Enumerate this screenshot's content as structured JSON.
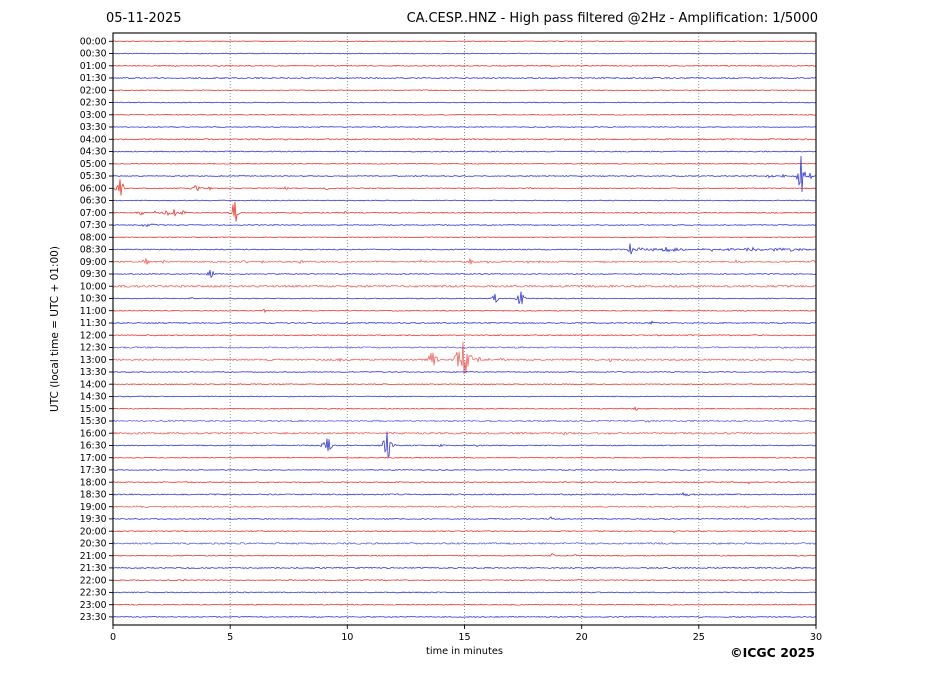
{
  "copyright": "©ICGC 2025",
  "chart_data": {
    "type": "line",
    "subtype": "helicorder-daily-drum-plot",
    "date": "05-11-2025",
    "title": "CA.CESP..HNZ - High pass filtered @2Hz - Amplification: 1/5000",
    "xlabel": "time in minutes",
    "ylabel": "UTC (local time = UTC + 01:00)",
    "x_range": [
      0,
      30
    ],
    "x_ticks": [
      0,
      5,
      10,
      15,
      20,
      25,
      30
    ],
    "grid_minutes": [
      5,
      10,
      15,
      20,
      25
    ],
    "grid_on": true,
    "trace_colors": {
      "red": "#e8241a",
      "blue": "#2024d2"
    },
    "rows_note": "48 half-hour traces; events = [minute, amplitude_px, width_min]",
    "rows": [
      {
        "time": "00:00",
        "color": "red",
        "noise": 0.4,
        "events": []
      },
      {
        "time": "00:30",
        "color": "blue",
        "noise": 0.4,
        "events": []
      },
      {
        "time": "01:00",
        "color": "red",
        "noise": 0.5,
        "events": []
      },
      {
        "time": "01:30",
        "color": "blue",
        "noise": 0.6,
        "events": []
      },
      {
        "time": "02:00",
        "color": "red",
        "noise": 0.4,
        "events": []
      },
      {
        "time": "02:30",
        "color": "blue",
        "noise": 0.4,
        "events": []
      },
      {
        "time": "03:00",
        "color": "red",
        "noise": 0.4,
        "events": []
      },
      {
        "time": "03:30",
        "color": "blue",
        "noise": 0.4,
        "events": []
      },
      {
        "time": "04:00",
        "color": "red",
        "noise": 0.6,
        "events": []
      },
      {
        "time": "04:30",
        "color": "blue",
        "noise": 0.5,
        "events": []
      },
      {
        "time": "05:00",
        "color": "red",
        "noise": 0.4,
        "events": []
      },
      {
        "time": "05:30",
        "color": "blue",
        "noise": 0.45,
        "events": [
          [
            28.0,
            1.5,
            0.2
          ],
          [
            28.6,
            1.2,
            0.15
          ],
          [
            29.35,
            20,
            0.15
          ],
          [
            29.75,
            3,
            0.12
          ]
        ]
      },
      {
        "time": "06:00",
        "color": "red",
        "noise": 0.45,
        "events": [
          [
            0.3,
            9,
            0.15
          ],
          [
            3.5,
            2.8,
            0.25
          ],
          [
            4.1,
            1.8,
            0.12
          ],
          [
            7.4,
            1.2,
            0.1
          ],
          [
            9.1,
            1.2,
            0.1
          ],
          [
            17.8,
            1.2,
            0.1
          ]
        ]
      },
      {
        "time": "06:30",
        "color": "blue",
        "noise": 0.4,
        "events": []
      },
      {
        "time": "07:00",
        "color": "red",
        "noise": 0.5,
        "events": [
          [
            1.2,
            1.8,
            0.15
          ],
          [
            1.75,
            1.8,
            0.12
          ],
          [
            2.3,
            2.5,
            0.2
          ],
          [
            2.6,
            3.5,
            0.18
          ],
          [
            3.0,
            2.2,
            0.15
          ],
          [
            5.2,
            11,
            0.15
          ],
          [
            9.9,
            1.8,
            0.1
          ]
        ]
      },
      {
        "time": "07:30",
        "color": "blue",
        "noise": 0.45,
        "events": [
          [
            1.5,
            1.3,
            0.45
          ]
        ]
      },
      {
        "time": "08:00",
        "color": "red",
        "noise": 0.4,
        "events": []
      },
      {
        "time": "08:30",
        "color": "blue",
        "noise": 0.5,
        "events": [
          [
            22.05,
            6,
            0.12
          ],
          [
            22.5,
            2,
            0.25
          ],
          [
            23.1,
            1.8,
            0.2
          ],
          [
            23.6,
            2.8,
            0.2
          ],
          [
            23.95,
            2.8,
            0.12
          ],
          [
            24.4,
            1.8,
            0.3
          ],
          [
            25.1,
            1.5,
            0.2
          ],
          [
            25.6,
            1.8,
            0.1
          ],
          [
            26.3,
            1.5,
            0.25
          ],
          [
            27.2,
            1.8,
            0.4
          ],
          [
            28.2,
            1.8,
            0.5
          ],
          [
            28.9,
            2.5,
            0.12
          ],
          [
            29.4,
            1.2,
            0.2
          ]
        ]
      },
      {
        "time": "09:00",
        "color": "red",
        "noise": 0.7,
        "events": [
          [
            1.4,
            3.5,
            0.12
          ],
          [
            2.2,
            1.2,
            0.1
          ],
          [
            5.6,
            1.5,
            0.12
          ],
          [
            6.4,
            1.5,
            0.1
          ],
          [
            8.0,
            1.5,
            0.1
          ],
          [
            9.3,
            1.2,
            0.1
          ],
          [
            11.2,
            1.5,
            0.1
          ],
          [
            13.2,
            1.5,
            0.1
          ],
          [
            15.25,
            3.2,
            0.12
          ],
          [
            16.0,
            1.3,
            0.1
          ],
          [
            17.6,
            1.6,
            0.15
          ],
          [
            18.2,
            1.6,
            0.12
          ],
          [
            18.6,
            1.4,
            0.1
          ],
          [
            19.4,
            1.5,
            0.1
          ],
          [
            21.0,
            1.4,
            0.12
          ],
          [
            21.5,
            1.3,
            0.1
          ],
          [
            26.6,
            1.3,
            0.1
          ],
          [
            29.9,
            1.8,
            0.08
          ]
        ]
      },
      {
        "time": "09:30",
        "color": "blue",
        "noise": 0.5,
        "events": [
          [
            4.15,
            4,
            0.15
          ]
        ]
      },
      {
        "time": "10:00",
        "color": "red",
        "noise": 1.0,
        "events": []
      },
      {
        "time": "10:30",
        "color": "blue",
        "noise": 0.45,
        "events": [
          [
            3.4,
            1.4,
            0.1
          ],
          [
            16.3,
            4.5,
            0.12
          ],
          [
            17.4,
            7,
            0.15
          ]
        ]
      },
      {
        "time": "11:00",
        "color": "red",
        "noise": 0.45,
        "events": [
          [
            6.5,
            2.8,
            0.1
          ]
        ]
      },
      {
        "time": "11:30",
        "color": "blue",
        "noise": 0.55,
        "events": [
          [
            23.0,
            1.8,
            0.1
          ]
        ]
      },
      {
        "time": "12:00",
        "color": "red",
        "noise": 0.5,
        "events": []
      },
      {
        "time": "12:30",
        "color": "blue",
        "noise": 0.7,
        "events": []
      },
      {
        "time": "13:00",
        "color": "red",
        "noise": 0.8,
        "events": [
          [
            9.75,
            1.8,
            0.1
          ],
          [
            10.15,
            1.6,
            0.1
          ],
          [
            13.65,
            7,
            0.22
          ],
          [
            14.95,
            18,
            0.3
          ],
          [
            15.55,
            2.5,
            0.15
          ],
          [
            16.1,
            1.8,
            0.12
          ],
          [
            16.6,
            1.6,
            0.12
          ],
          [
            17.6,
            1.4,
            0.1
          ],
          [
            21.2,
            1.3,
            0.1
          ]
        ]
      },
      {
        "time": "13:30",
        "color": "blue",
        "noise": 0.45,
        "events": []
      },
      {
        "time": "14:00",
        "color": "red",
        "noise": 0.45,
        "events": []
      },
      {
        "time": "14:30",
        "color": "blue",
        "noise": 0.4,
        "events": []
      },
      {
        "time": "15:00",
        "color": "red",
        "noise": 0.45,
        "events": [
          [
            22.3,
            1.6,
            0.1
          ]
        ]
      },
      {
        "time": "15:30",
        "color": "blue",
        "noise": 0.7,
        "events": [
          [
            22.8,
            1.5,
            0.1
          ]
        ]
      },
      {
        "time": "16:00",
        "color": "red",
        "noise": 0.9,
        "events": [
          [
            19.3,
            1.3,
            0.1
          ],
          [
            21.1,
            1.8,
            0.1
          ]
        ]
      },
      {
        "time": "16:30",
        "color": "blue",
        "noise": 0.5,
        "events": [
          [
            9.15,
            7,
            0.2
          ],
          [
            11.7,
            14,
            0.2
          ],
          [
            14.0,
            1.4,
            0.15
          ],
          [
            15.5,
            1.1,
            0.1
          ]
        ]
      },
      {
        "time": "17:00",
        "color": "red",
        "noise": 0.45,
        "events": []
      },
      {
        "time": "17:30",
        "color": "blue",
        "noise": 0.45,
        "events": []
      },
      {
        "time": "18:00",
        "color": "red",
        "noise": 0.5,
        "events": [
          [
            27.1,
            1.4,
            0.1
          ]
        ]
      },
      {
        "time": "18:30",
        "color": "blue",
        "noise": 0.6,
        "events": [
          [
            24.4,
            1.8,
            0.3
          ]
        ]
      },
      {
        "time": "19:00",
        "color": "red",
        "noise": 0.7,
        "events": [
          [
            27.0,
            1.4,
            0.1
          ]
        ]
      },
      {
        "time": "19:30",
        "color": "blue",
        "noise": 0.5,
        "events": [
          [
            18.7,
            2.2,
            0.08
          ]
        ]
      },
      {
        "time": "20:00",
        "color": "red",
        "noise": 0.5,
        "events": [
          [
            24.0,
            1.4,
            0.1
          ]
        ]
      },
      {
        "time": "20:30",
        "color": "blue",
        "noise": 0.8,
        "events": []
      },
      {
        "time": "21:00",
        "color": "red",
        "noise": 0.5,
        "events": [
          [
            18.75,
            2.8,
            0.1
          ],
          [
            19.7,
            1.4,
            0.1
          ]
        ]
      },
      {
        "time": "21:30",
        "color": "blue",
        "noise": 0.6,
        "events": []
      },
      {
        "time": "22:00",
        "color": "red",
        "noise": 0.5,
        "events": [
          [
            3.0,
            1.0,
            0.1
          ]
        ]
      },
      {
        "time": "22:30",
        "color": "blue",
        "noise": 0.5,
        "events": []
      },
      {
        "time": "23:00",
        "color": "red",
        "noise": 0.5,
        "events": []
      },
      {
        "time": "23:30",
        "color": "blue",
        "noise": 0.5,
        "events": []
      }
    ]
  }
}
